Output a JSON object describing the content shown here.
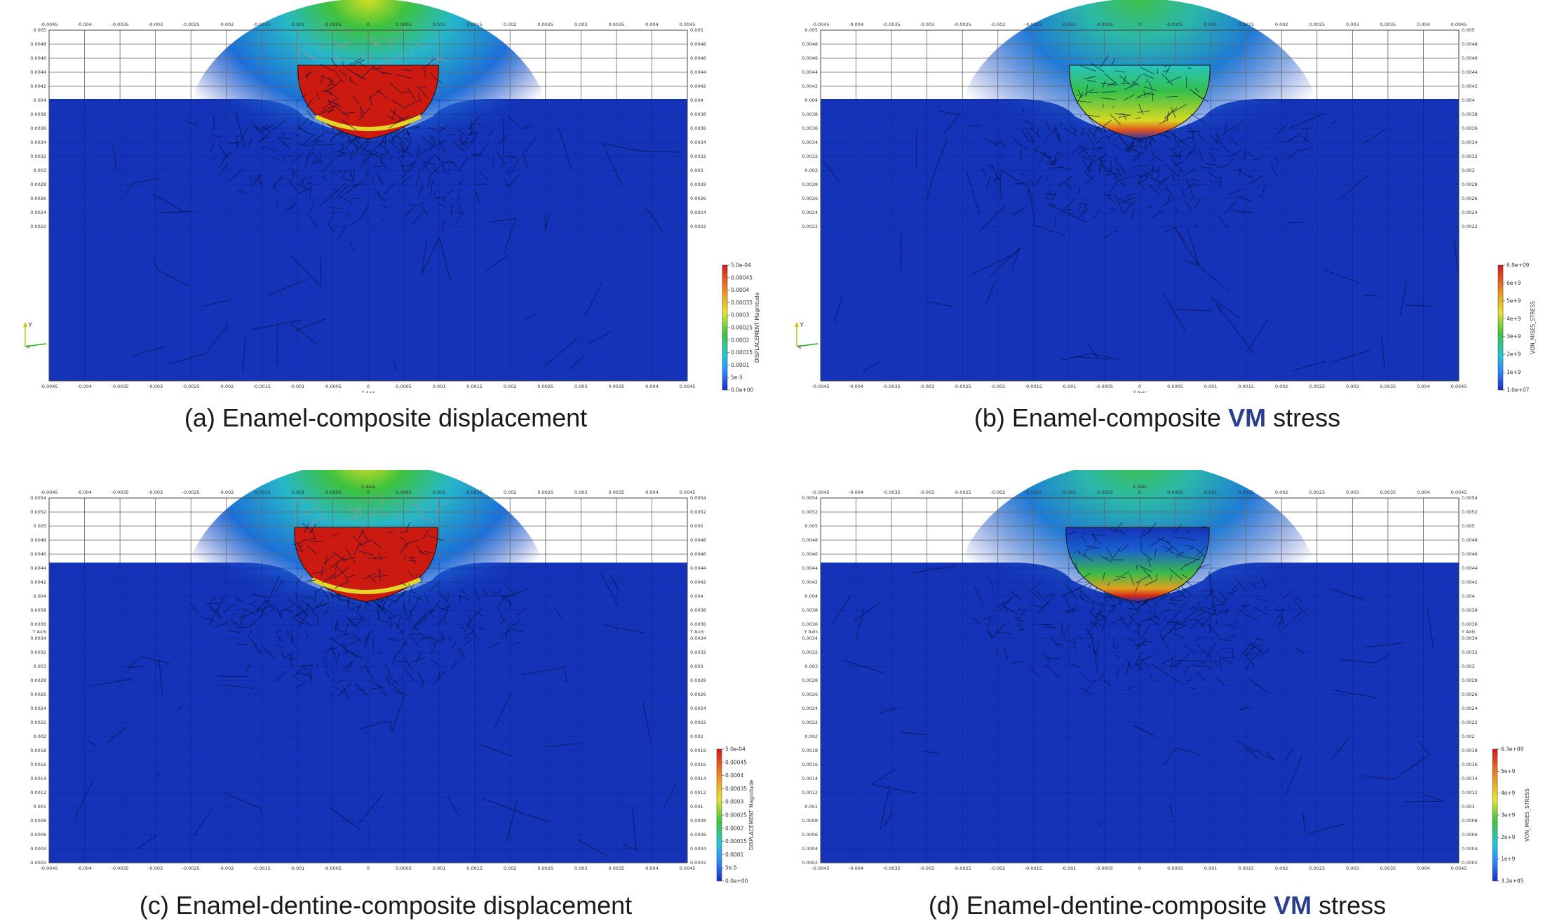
{
  "panels": [
    {
      "id": "a",
      "caption": "(a) Enamel-composite displacement",
      "caption_pre": "(a) Enamel-composite displacement",
      "caption_hl": "",
      "caption_post": "",
      "field": "displacement",
      "colorbar_title": "DISPLACEMENT Magnitude",
      "colorbar_labels": [
        "5.0e-04",
        "0.00045",
        "0.0004",
        "0.00035",
        "0.0003",
        "0.00025",
        "0.0002",
        "0.00015",
        "0.0001",
        "5e-5",
        "0.0e+00"
      ],
      "x_ticks": [
        "-0.0045",
        "-0.004",
        "-0.0035",
        "-0.003",
        "-0.0025",
        "-0.002",
        "-0.0015",
        "-0.001",
        "-0.0005",
        "0",
        "0.0005",
        "0.001",
        "0.0015",
        "0.002",
        "0.0025",
        "0.003",
        "0.0035",
        "0.004",
        "0.0045"
      ],
      "y_ticks": [
        "0.005",
        "0.0048",
        "0.0046",
        "0.0044",
        "0.0042",
        "0.004",
        "0.0038",
        "0.0036",
        "0.0034",
        "0.0032",
        "0.003",
        "0.0028",
        "0.0026",
        "0.0024",
        "0.0022"
      ],
      "top_axis_label": "",
      "bottom_axis_label": "Z Axis",
      "side_axis_label": ""
    },
    {
      "id": "b",
      "caption_pre": "(b) Enamel-composite ",
      "caption_hl": "VM",
      "caption_post": " stress",
      "field": "stress",
      "colorbar_title": "VON_MISES_STRESS",
      "colorbar_labels": [
        "6.9e+09",
        "6e+9",
        "5e+9",
        "4e+9",
        "3e+9",
        "2e+9",
        "1e+9",
        "1.0e+07"
      ],
      "x_ticks": [
        "-0.0045",
        "-0.004",
        "-0.0035",
        "-0.003",
        "-0.0025",
        "-0.002",
        "-0.0015",
        "-0.001",
        "-0.0005",
        "0",
        "0.0005",
        "0.001",
        "0.0015",
        "0.002",
        "0.0025",
        "0.003",
        "0.0035",
        "0.004",
        "0.0045"
      ],
      "y_ticks": [
        "0.005",
        "0.0048",
        "0.0046",
        "0.0044",
        "0.0042",
        "0.004",
        "0.0038",
        "0.0036",
        "0.0034",
        "0.0032",
        "0.003",
        "0.0028",
        "0.0026",
        "0.0024",
        "0.0022"
      ],
      "top_axis_label": "",
      "bottom_axis_label": "Z Axis",
      "side_axis_label": ""
    },
    {
      "id": "c",
      "caption_pre": "(c) Enamel-dentine-composite displacement",
      "caption_hl": "",
      "caption_post": "",
      "field": "displacement",
      "colorbar_title": "DISPLACEMENT Magnitude",
      "colorbar_labels": [
        "5.0e-04",
        "0.00045",
        "0.0004",
        "0.00035",
        "0.0003",
        "0.00025",
        "0.0002",
        "0.00015",
        "0.0001",
        "5e-5",
        "0.0e+00"
      ],
      "x_ticks": [
        "-0.0045",
        "-0.004",
        "-0.0035",
        "-0.003",
        "-0.0025",
        "-0.002",
        "-0.0015",
        "-0.001",
        "-0.0005",
        "0",
        "0.0005",
        "0.001",
        "0.0015",
        "0.002",
        "0.0025",
        "0.003",
        "0.0035",
        "0.004",
        "0.0045"
      ],
      "y_ticks": [
        "0.0054",
        "0.0052",
        "0.005",
        "0.0048",
        "0.0046",
        "0.0044",
        "0.0042",
        "0.004",
        "0.0038",
        "0.0036",
        "0.0034",
        "0.0032",
        "0.003",
        "0.0028",
        "0.0026",
        "0.0024",
        "0.0022",
        "0.002",
        "0.0018",
        "0.0016",
        "0.0014",
        "0.0012",
        "0.001",
        "0.0008",
        "0.0006",
        "0.0004",
        "0.0002"
      ],
      "top_axis_label": "Z Axis",
      "bottom_axis_label": "",
      "side_axis_label": "Y Axis"
    },
    {
      "id": "d",
      "caption_pre": "(d) Enamel-dentine-composite ",
      "caption_hl": "VM",
      "caption_post": " stress",
      "field": "stress",
      "colorbar_title": "VON_MISES_STRESS",
      "colorbar_labels": [
        "6.3e+09",
        "5e+9",
        "4e+9",
        "3e+9",
        "2e+9",
        "1e+9",
        "3.2e+05"
      ],
      "x_ticks": [
        "-0.0045",
        "-0.004",
        "-0.0035",
        "-0.003",
        "-0.0025",
        "-0.002",
        "-0.0015",
        "-0.001",
        "-0.0005",
        "0",
        "0.0005",
        "0.001",
        "0.0015",
        "0.002",
        "0.0025",
        "0.003",
        "0.0035",
        "0.004",
        "0.0045"
      ],
      "y_ticks": [
        "0.0054",
        "0.0052",
        "0.005",
        "0.0048",
        "0.0046",
        "0.0044",
        "0.0042",
        "0.004",
        "0.0038",
        "0.0036",
        "0.0034",
        "0.0032",
        "0.003",
        "0.0028",
        "0.0026",
        "0.0024",
        "0.0022",
        "0.002",
        "0.0018",
        "0.0016",
        "0.0014",
        "0.0012",
        "0.001",
        "0.0008",
        "0.0006",
        "0.0004",
        "0.0002"
      ],
      "top_axis_label": "Z Axis",
      "bottom_axis_label": "",
      "side_axis_label": "Y Axis"
    }
  ],
  "colors": {
    "background_blue": "#1433b8",
    "hot_red": "#cc1a10",
    "caption_highlight": "#2c3f8f"
  }
}
